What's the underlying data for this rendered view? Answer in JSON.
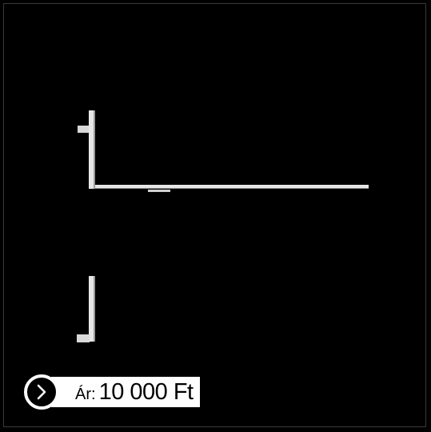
{
  "price": {
    "prefix": "Ár:",
    "value": "10 000 Ft"
  },
  "icons": {
    "next": "chevron-right-icon"
  },
  "colors": {
    "background": "#000000",
    "foreground": "#ffffff"
  }
}
